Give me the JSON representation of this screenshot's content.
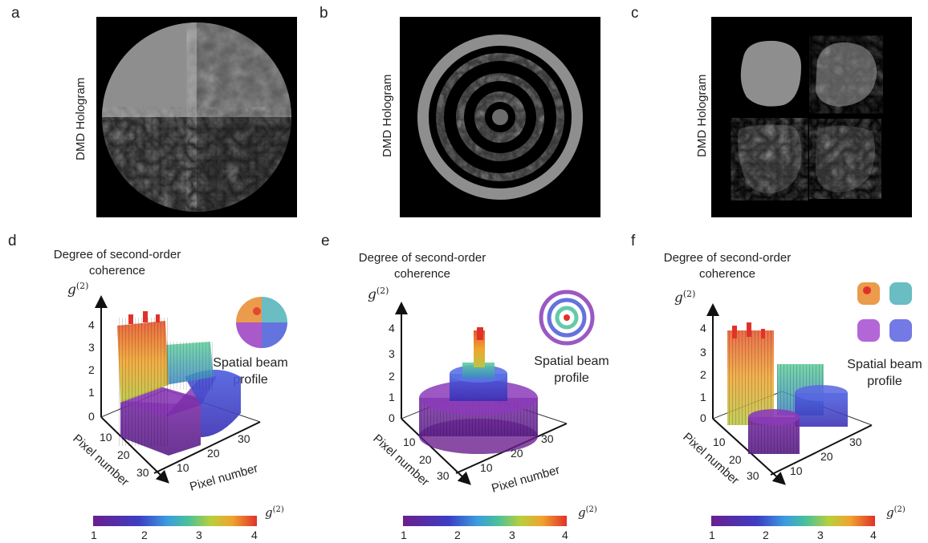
{
  "panels": {
    "a": "a",
    "b": "b",
    "c": "c",
    "d": "d",
    "e": "e",
    "f": "f"
  },
  "hologram_label": "DMD Hologram",
  "y_axis_label_line1": "Degree of second-order",
  "y_axis_label_line2": "coherence",
  "g2_symbol": "g",
  "g2_superscript": "(2)",
  "profile_label_line1": "Spatial beam",
  "profile_label_line2": "profile",
  "pixel_axis_label": "Pixel number",
  "z_ticks": [
    "0",
    "1",
    "2",
    "3",
    "4"
  ],
  "pixel_ticks": [
    "10",
    "20",
    "30"
  ],
  "colorbar_ticks": [
    "1",
    "2",
    "3",
    "4"
  ],
  "colormap": [
    "#6a1f8f",
    "#3d3ec2",
    "#3b9be0",
    "#49c19a",
    "#b9cf3b",
    "#f0a330",
    "#e0322a"
  ]
}
